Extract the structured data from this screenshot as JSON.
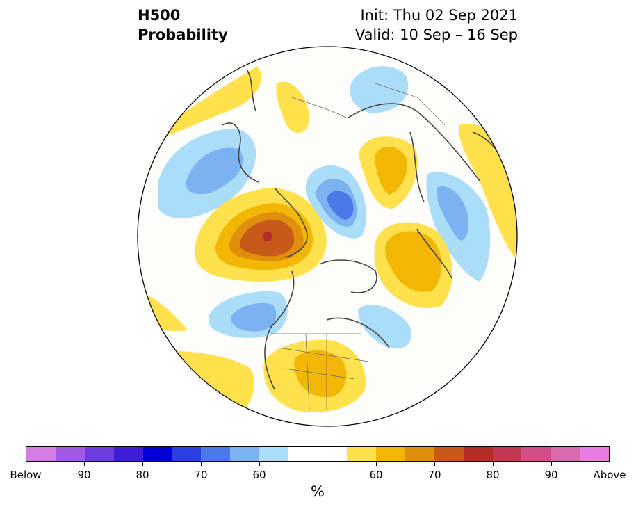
{
  "title": {
    "left_line1": "H500",
    "left_line2": "Probability",
    "right_line1": "Init: Thu 02 Sep 2021",
    "right_line2": "Valid: 10 Sep – 16 Sep"
  },
  "colorbar": {
    "colors": [
      "#d57be6",
      "#a259e3",
      "#6c3ee0",
      "#3e1fd6",
      "#0000d6",
      "#2a3fe0",
      "#4d79e8",
      "#7ab3f0",
      "#abdcf8",
      "#ffffff",
      "#ffffff",
      "#ffe14d",
      "#f2b705",
      "#e08f0c",
      "#c75a18",
      "#b22d26",
      "#c23a52",
      "#cf4f86",
      "#d96ab2",
      "#e67be0"
    ],
    "tick_labels": [
      "Below",
      "90",
      "80",
      "70",
      "60",
      "",
      "60",
      "70",
      "80",
      "90",
      "Above"
    ],
    "unit_label": "%"
  }
}
